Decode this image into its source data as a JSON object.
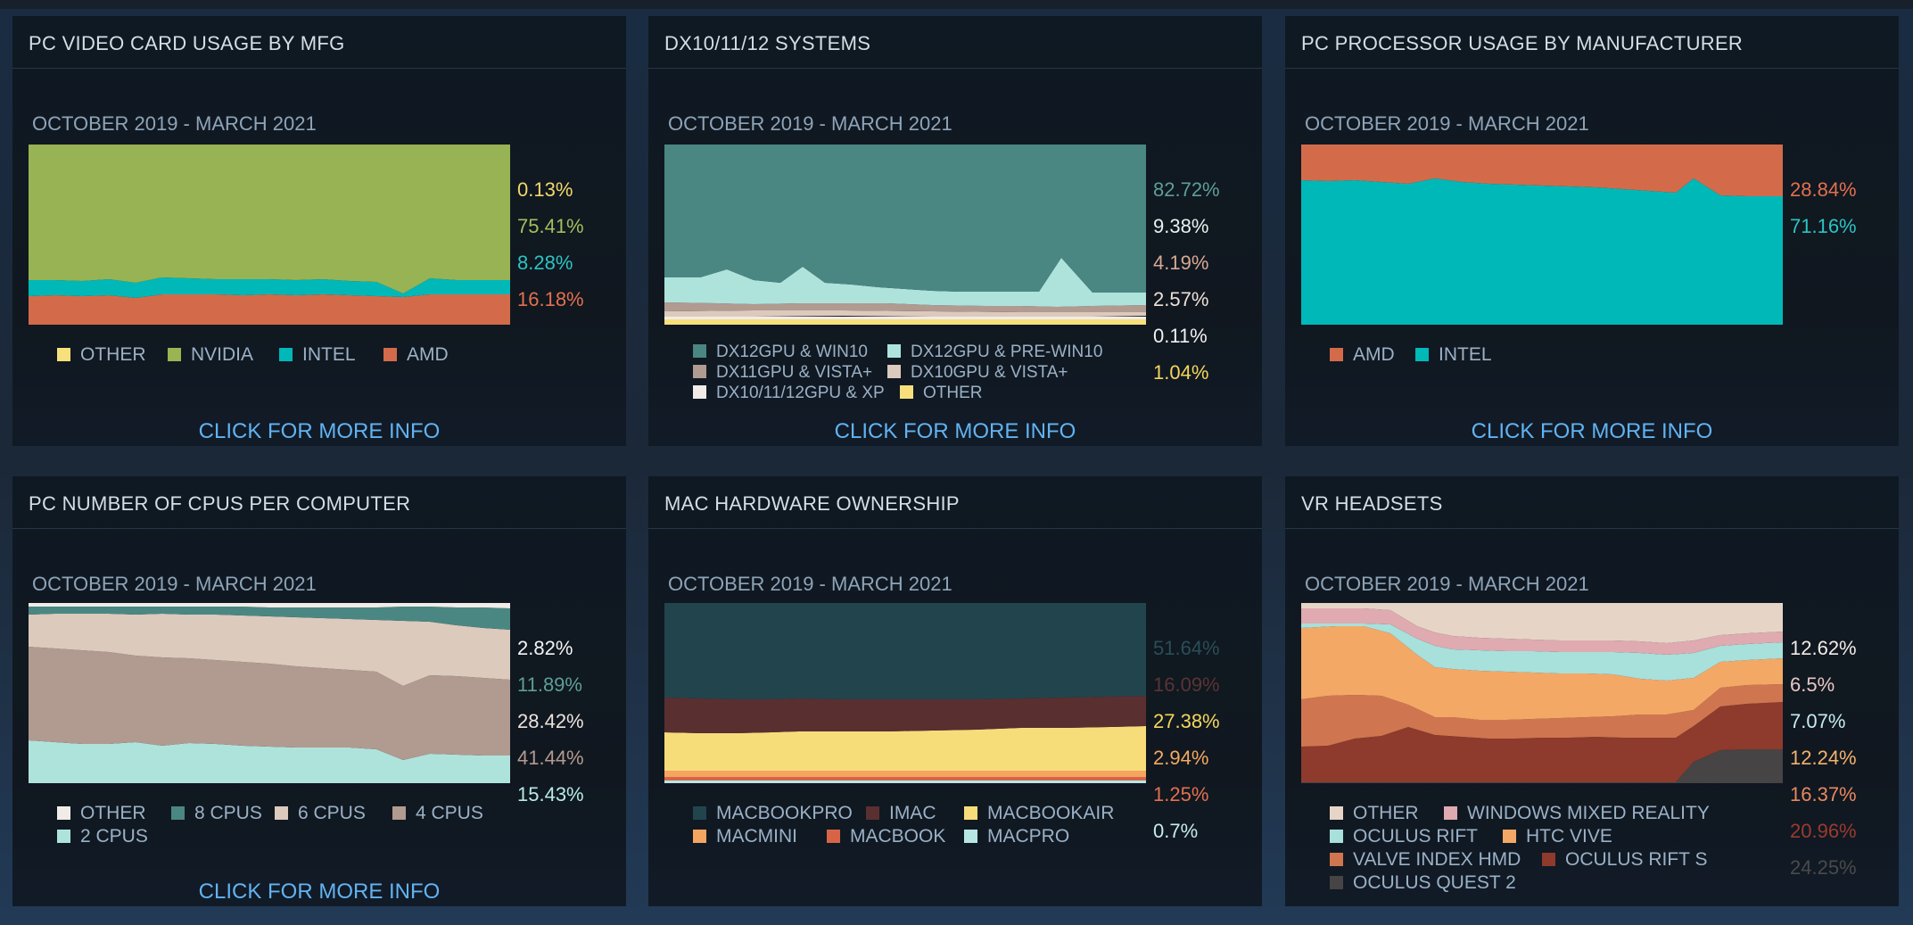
{
  "panels": [
    {
      "title": "PC VIDEO CARD USAGE BY MFG",
      "date_range": "OCTOBER 2019 - MARCH 2021",
      "link": "CLICK FOR MORE INFO",
      "percentages": [
        {
          "text": "0.13%",
          "color": "#f4d86a"
        },
        {
          "text": "75.41%",
          "color": "#a6be5c"
        },
        {
          "text": "8.28%",
          "color": "#2bc4c4"
        },
        {
          "text": "16.18%",
          "color": "#e3704f"
        }
      ],
      "legend": [
        {
          "label": "OTHER",
          "color": "#f7e07c"
        },
        {
          "label": "NVIDIA",
          "color": "#9ab452"
        },
        {
          "label": "INTEL",
          "color": "#00b8b8"
        },
        {
          "label": "AMD",
          "color": "#d36b4a"
        }
      ]
    },
    {
      "title": "DX10/11/12 SYSTEMS",
      "date_range": "OCTOBER 2019 - MARCH 2021",
      "link": "CLICK FOR MORE INFO",
      "percentages": [
        {
          "text": "82.72%",
          "color": "#5e9f95"
        },
        {
          "text": "9.38%",
          "color": "#e8f2f0"
        },
        {
          "text": "4.19%",
          "color": "#d7a994"
        },
        {
          "text": "2.57%",
          "color": "#ede0d6"
        },
        {
          "text": "0.11%",
          "color": "#f1f1f1"
        },
        {
          "text": "1.04%",
          "color": "#f6d65b"
        }
      ],
      "legend": [
        {
          "label": "DX12GPU & WIN10",
          "color": "#4b8782"
        },
        {
          "label": "DX12GPU & PRE-WIN10",
          "color": "#aee3dc"
        },
        {
          "label": "DX11GPU & VISTA+",
          "color": "#b19a90"
        },
        {
          "label": "DX10GPU & VISTA+",
          "color": "#dccabd"
        },
        {
          "label": "DX10/11/12GPU & XP",
          "color": "#f1ece7"
        },
        {
          "label": "OTHER",
          "color": "#f7e07c"
        }
      ]
    },
    {
      "title": "PC PROCESSOR USAGE BY MANUFACTURER",
      "date_range": "OCTOBER 2019 - MARCH 2021",
      "link": "CLICK FOR MORE INFO",
      "percentages": [
        {
          "text": "28.84%",
          "color": "#e3704f"
        },
        {
          "text": "71.16%",
          "color": "#2bc4c4"
        }
      ],
      "legend": [
        {
          "label": "AMD",
          "color": "#d36b4a"
        },
        {
          "label": "INTEL",
          "color": "#00b8b8"
        }
      ]
    },
    {
      "title": "PC NUMBER OF CPUS PER COMPUTER",
      "date_range": "OCTOBER 2019 - MARCH 2021",
      "link": "CLICK FOR MORE INFO",
      "percentages": [
        {
          "text": "2.82%",
          "color": "#f4f4f4"
        },
        {
          "text": "11.89%",
          "color": "#5e9f95"
        },
        {
          "text": "28.42%",
          "color": "#ece3dc"
        },
        {
          "text": "41.44%",
          "color": "#b49a90"
        },
        {
          "text": "15.43%",
          "color": "#b7ebe4"
        }
      ],
      "legend": [
        {
          "label": "OTHER",
          "color": "#f1ece7"
        },
        {
          "label": "8 CPUS",
          "color": "#4b8782"
        },
        {
          "label": "6 CPUS",
          "color": "#dccabd"
        },
        {
          "label": "4 CPUS",
          "color": "#b19a90"
        },
        {
          "label": "2 CPUS",
          "color": "#aee3dc"
        }
      ]
    },
    {
      "title": "MAC HARDWARE OWNERSHIP",
      "date_range": "OCTOBER 2019 - MARCH 2021",
      "link": "",
      "percentages": [
        {
          "text": "51.64%",
          "color": "#2b4e57"
        },
        {
          "text": "16.09%",
          "color": "#5a3434"
        },
        {
          "text": "27.38%",
          "color": "#f6d65b"
        },
        {
          "text": "2.94%",
          "color": "#f3a962"
        },
        {
          "text": "1.25%",
          "color": "#e3704f"
        },
        {
          "text": "0.7%",
          "color": "#c7ecee"
        }
      ],
      "legend": [
        {
          "label": "MACBOOKPRO",
          "color": "#22444d"
        },
        {
          "label": "IMAC",
          "color": "#5a2f30"
        },
        {
          "label": "MACBOOKAIR",
          "color": "#f7dd7a"
        },
        {
          "label": "MACMINI",
          "color": "#f4a560"
        },
        {
          "label": "MACBOOK",
          "color": "#d86448"
        },
        {
          "label": "MACPRO",
          "color": "#b6e7e4"
        }
      ]
    },
    {
      "title": "VR HEADSETS",
      "date_range": "OCTOBER 2019 - MARCH 2021",
      "link": "",
      "percentages": [
        {
          "text": "12.62%",
          "color": "#f1ece7"
        },
        {
          "text": "6.5%",
          "color": "#e8c6c6"
        },
        {
          "text": "7.07%",
          "color": "#c7ecee"
        },
        {
          "text": "12.24%",
          "color": "#f5b16e"
        },
        {
          "text": "16.37%",
          "color": "#e8885e"
        },
        {
          "text": "20.96%",
          "color": "#9c3a2e"
        },
        {
          "text": "24.25%",
          "color": "#4a4a4a"
        }
      ],
      "legend": [
        {
          "label": "OTHER",
          "color": "#e6d5c6"
        },
        {
          "label": "WINDOWS MIXED REALITY",
          "color": "#dfaab0"
        },
        {
          "label": "OCULUS RIFT",
          "color": "#a8e0dc"
        },
        {
          "label": "HTC VIVE",
          "color": "#f4a866"
        },
        {
          "label": "VALVE INDEX HMD",
          "color": "#cf7650"
        },
        {
          "label": "OCULUS RIFT S",
          "color": "#8e3a2c"
        },
        {
          "label": "OCULUS QUEST 2",
          "color": "#464444"
        }
      ]
    }
  ]
}
